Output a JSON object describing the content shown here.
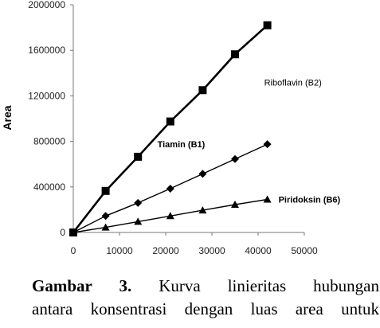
{
  "chart_data": {
    "type": "line",
    "ylabel": "Area",
    "xlabel": "",
    "xlim": [
      0,
      50000
    ],
    "ylim": [
      0,
      2000000
    ],
    "x_ticks": [
      "0",
      "10000",
      "20000",
      "30000",
      "40000",
      "50000"
    ],
    "y_ticks": [
      "0",
      "400000",
      "800000",
      "1200000",
      "1600000",
      "2000000"
    ],
    "grid": false,
    "legend": "inline labels at line ends",
    "series": [
      {
        "name": "Riboflavin (B2)",
        "marker": "square",
        "x": [
          0,
          7000,
          14000,
          21000,
          28000,
          35000,
          42000
        ],
        "y": [
          0,
          365000,
          665000,
          975000,
          1250000,
          1565000,
          1820000
        ]
      },
      {
        "name": "Tiamin (B1)",
        "marker": "diamond",
        "x": [
          0,
          7000,
          14000,
          21000,
          28000,
          35000,
          42000
        ],
        "y": [
          0,
          145000,
          260000,
          385000,
          515000,
          645000,
          775000
        ]
      },
      {
        "name": "Piridoksin (B6)",
        "marker": "triangle",
        "x": [
          0,
          7000,
          14000,
          21000,
          28000,
          35000,
          42000
        ],
        "y": [
          0,
          45000,
          95000,
          145000,
          195000,
          245000,
          290000
        ]
      }
    ]
  },
  "caption": {
    "label": "Gambar 3.",
    "line1_rest": "Kurva linieritas hubungan",
    "line2": "antara konsentrasi dengan luas area untuk"
  }
}
